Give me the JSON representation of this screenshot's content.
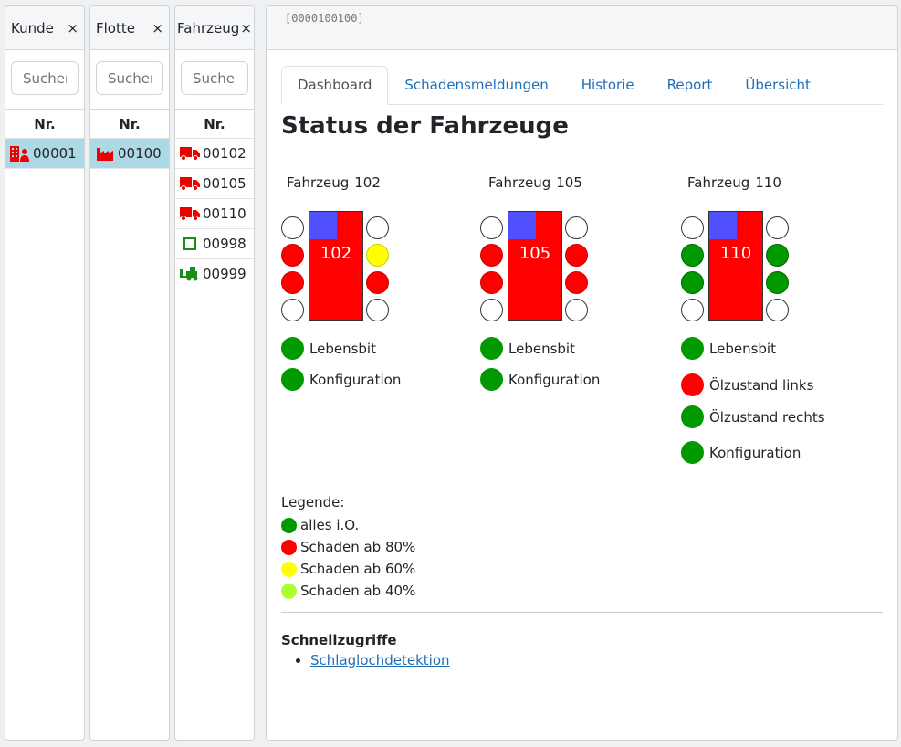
{
  "panels": [
    {
      "title": "Kunde",
      "search_placeholder": "Suchen",
      "col": "Nr.",
      "rows": [
        {
          "icon": "customer-icon",
          "nr": "00001",
          "selected": true
        }
      ]
    },
    {
      "title": "Flotte",
      "search_placeholder": "Suchen",
      "col": "Nr.",
      "rows": [
        {
          "icon": "factory-icon",
          "nr": "00100",
          "selected": true
        }
      ]
    },
    {
      "title": "Fahrzeug",
      "search_placeholder": "Suchen",
      "col": "Nr.",
      "rows": [
        {
          "icon": "truck-icon",
          "nr": "00102"
        },
        {
          "icon": "truck-icon",
          "nr": "00105"
        },
        {
          "icon": "truck-icon",
          "nr": "00110"
        },
        {
          "icon": "square-icon",
          "nr": "00998"
        },
        {
          "icon": "forklift-icon",
          "nr": "00999"
        }
      ]
    }
  ],
  "close_glyph": "×",
  "main": {
    "id": "[0000100100]",
    "tabs": [
      "Dashboard",
      "Schadensmeldungen",
      "Historie",
      "Report",
      "Übersicht"
    ],
    "title": "Status der Fahrzeuge"
  },
  "vehicles": [
    {
      "label": "Fahrzeug",
      "num": "102",
      "truck_label": "102",
      "left": [
        "empty",
        "red",
        "red",
        "empty"
      ],
      "right": [
        "empty",
        "yellow",
        "red",
        "empty"
      ],
      "status": [
        {
          "label": "Lebensbit",
          "color": "green"
        },
        {
          "label": "Konfiguration",
          "color": "green"
        }
      ]
    },
    {
      "label": "Fahrzeug",
      "num": "105",
      "truck_label": "105",
      "left": [
        "empty",
        "red",
        "red",
        "empty"
      ],
      "right": [
        "empty",
        "red",
        "red",
        "empty"
      ],
      "status": [
        {
          "label": "Lebensbit",
          "color": "green"
        },
        {
          "label": "Konfiguration",
          "color": "green"
        }
      ]
    },
    {
      "label": "Fahrzeug",
      "num": "110",
      "truck_label": "110",
      "left": [
        "empty",
        "green",
        "green",
        "empty"
      ],
      "right": [
        "empty",
        "green",
        "green",
        "empty"
      ],
      "status": [
        {
          "label": "Lebensbit",
          "color": "green"
        },
        {
          "label": "Ölzustand links",
          "color": "red"
        },
        {
          "label": "Ölzustand rechts",
          "color": "green"
        },
        {
          "label": "Konfiguration",
          "color": "green"
        }
      ]
    }
  ],
  "legend": {
    "title": "Legende:",
    "items": [
      {
        "label": "alles i.O.",
        "color": "#009900"
      },
      {
        "label": "Schaden ab 80%",
        "color": "#ff0000"
      },
      {
        "label": "Schaden ab 60%",
        "color": "#ffff00"
      },
      {
        "label": "Schaden ab 40%",
        "color": "#adff2f"
      }
    ]
  },
  "quick": {
    "title": "Schnellzugriffe",
    "links": [
      "Schlaglochdetektion"
    ]
  }
}
